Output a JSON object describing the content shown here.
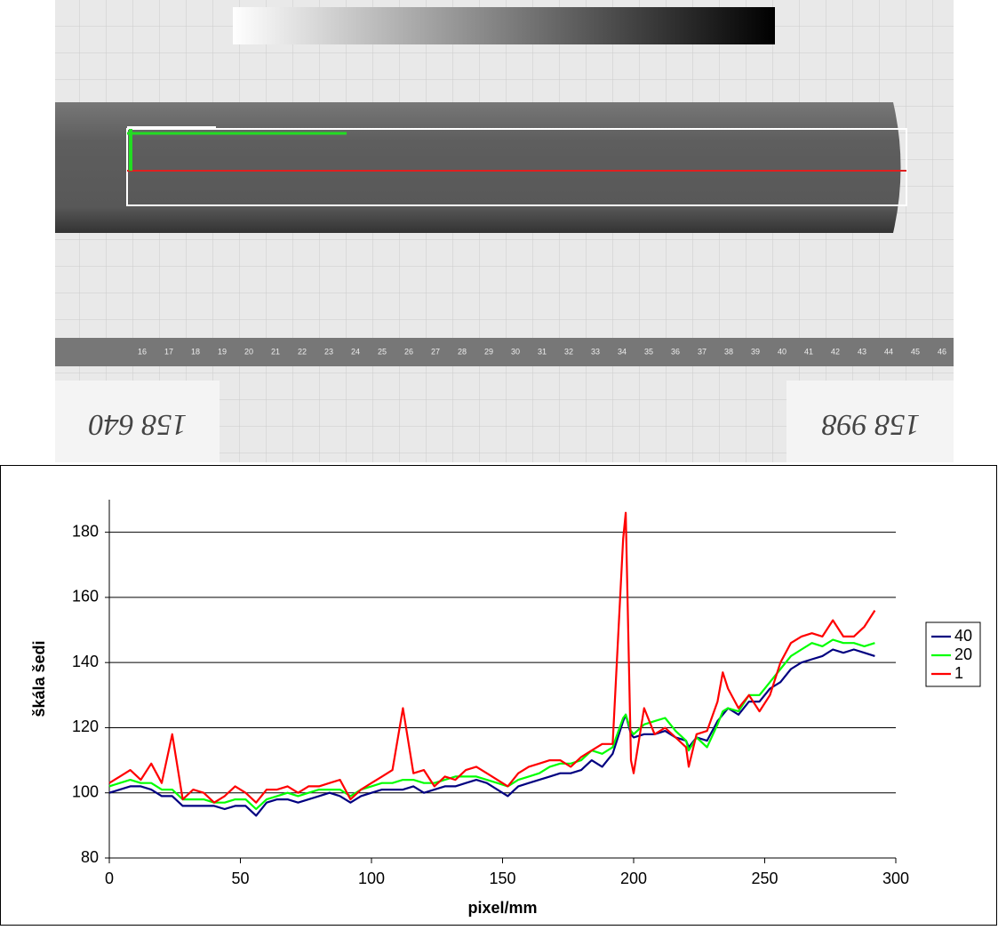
{
  "photo": {
    "ruler": [
      16,
      17,
      18,
      19,
      20,
      21,
      22,
      23,
      24,
      25,
      26,
      27,
      28,
      29,
      30,
      31,
      32,
      33,
      34,
      35,
      36,
      37,
      38,
      39,
      40,
      41,
      42,
      43,
      44,
      45,
      46
    ],
    "labels": [
      "158 640",
      "158 998"
    ]
  },
  "chart_data": {
    "type": "line",
    "xlabel": "pixel/mm",
    "ylabel": "škála šedi",
    "x": [
      0,
      4,
      8,
      12,
      16,
      20,
      24,
      28,
      32,
      36,
      40,
      44,
      48,
      52,
      56,
      60,
      64,
      68,
      72,
      76,
      80,
      84,
      88,
      92,
      96,
      100,
      104,
      108,
      112,
      116,
      120,
      124,
      128,
      132,
      136,
      140,
      144,
      148,
      152,
      156,
      160,
      164,
      168,
      172,
      176,
      180,
      184,
      188,
      192,
      196,
      197,
      199,
      200,
      204,
      208,
      212,
      216,
      220,
      221,
      224,
      228,
      232,
      234,
      236,
      240,
      244,
      248,
      252,
      256,
      260,
      264,
      268,
      272,
      276,
      280,
      284,
      288,
      292
    ],
    "series": [
      {
        "name": "40",
        "color": "#000080",
        "values": [
          100,
          101,
          102,
          102,
          101,
          99,
          99,
          96,
          96,
          96,
          96,
          95,
          96,
          96,
          93,
          97,
          98,
          98,
          97,
          98,
          99,
          100,
          99,
          97,
          99,
          100,
          101,
          101,
          101,
          102,
          100,
          101,
          102,
          102,
          103,
          104,
          103,
          101,
          99,
          102,
          103,
          104,
          105,
          106,
          106,
          107,
          110,
          108,
          112,
          122,
          124,
          118,
          117,
          118,
          118,
          119,
          117,
          116,
          114,
          117,
          116,
          122,
          124,
          126,
          124,
          128,
          128,
          132,
          134,
          138,
          140,
          141,
          142,
          144,
          143,
          144,
          143,
          142
        ]
      },
      {
        "name": "20",
        "color": "#00ff00",
        "values": [
          102,
          103,
          104,
          103,
          103,
          101,
          101,
          98,
          98,
          98,
          97,
          97,
          98,
          98,
          95,
          98,
          99,
          100,
          99,
          100,
          101,
          101,
          101,
          99,
          101,
          102,
          103,
          103,
          104,
          104,
          103,
          103,
          104,
          105,
          105,
          105,
          104,
          103,
          102,
          104,
          105,
          106,
          108,
          109,
          109,
          110,
          113,
          112,
          114,
          123,
          124,
          119,
          118,
          121,
          122,
          123,
          119,
          116,
          113,
          117,
          114,
          121,
          125,
          126,
          125,
          130,
          130,
          134,
          138,
          142,
          144,
          146,
          145,
          147,
          146,
          146,
          145,
          146
        ]
      },
      {
        "name": "1",
        "color": "#ff0000",
        "values": [
          103,
          105,
          107,
          104,
          109,
          103,
          118,
          98,
          101,
          100,
          97,
          99,
          102,
          100,
          97,
          101,
          101,
          102,
          100,
          102,
          102,
          103,
          104,
          98,
          101,
          103,
          105,
          107,
          126,
          106,
          107,
          102,
          105,
          104,
          107,
          108,
          106,
          104,
          102,
          106,
          108,
          109,
          110,
          110,
          108,
          111,
          113,
          115,
          115,
          178,
          186,
          110,
          106,
          126,
          118,
          120,
          117,
          114,
          108,
          118,
          119,
          128,
          137,
          132,
          126,
          130,
          125,
          130,
          140,
          146,
          148,
          149,
          148,
          153,
          148,
          148,
          151,
          156
        ]
      }
    ],
    "xlim": [
      0,
      300
    ],
    "xticks": [
      0,
      50,
      100,
      150,
      200,
      250,
      300
    ],
    "ylim": [
      80,
      190
    ],
    "yticks": [
      80,
      100,
      120,
      140,
      160,
      180
    ],
    "grid": true,
    "legend": "right"
  }
}
